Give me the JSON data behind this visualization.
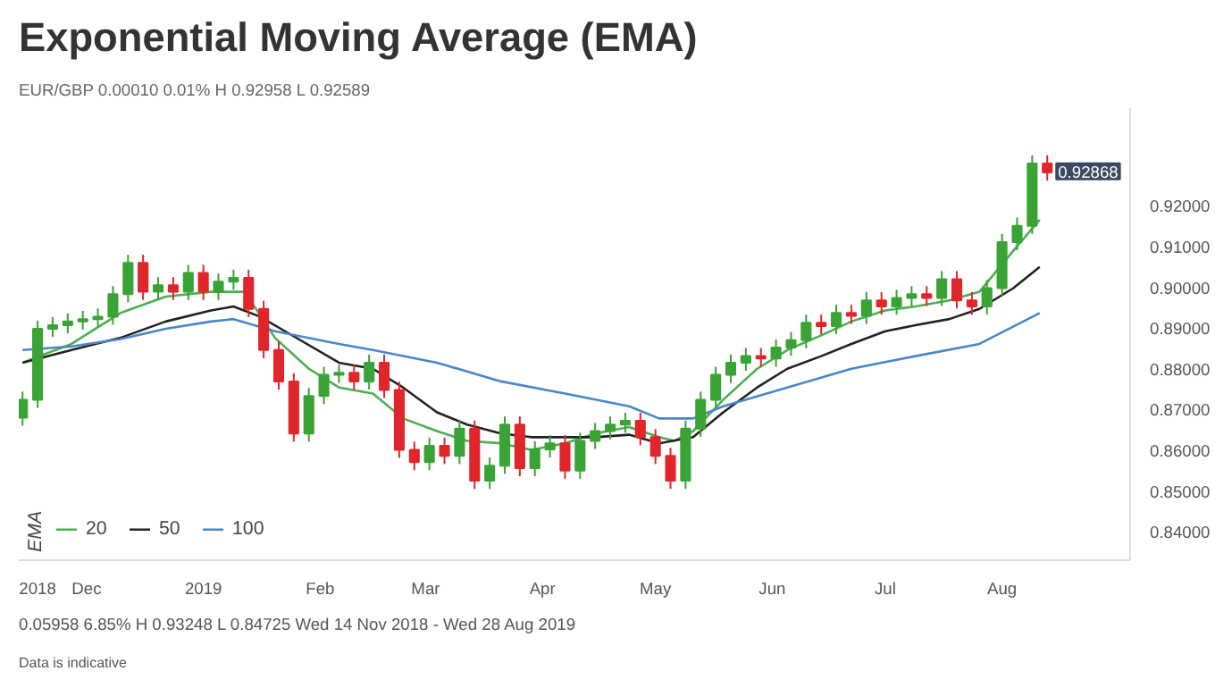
{
  "chart_data": {
    "type": "candlestick",
    "title": "Exponential Moving Average (EMA)",
    "legend_title": "EMA",
    "legend": "bottom left",
    "annotations": [
      "EUR/GBP  0.00010  0.01%  H 0.92958  L 0.92589",
      {
        "text": "0.92868",
        "x": "2019-08-13",
        "y": 0.92868
      },
      "0.05958  6.85%  H 0.93248  L 0.84725  Wed 14 Nov 2018 - Wed 28 Aug 2019",
      "Data is indicative"
    ],
    "xlim": [
      "2018-11-13",
      "2019-09-04"
    ],
    "ylim": [
      0.833,
      0.944
    ],
    "xticks": [
      {
        "value": "2018-11-18",
        "label": "2018"
      },
      {
        "value": "2018-12-01",
        "label": "Dec"
      },
      {
        "value": "2019-01-01",
        "label": "2019"
      },
      {
        "value": "2019-02-01",
        "label": "Feb"
      },
      {
        "value": "2019-03-01",
        "label": "Mar"
      },
      {
        "value": "2019-04-01",
        "label": "Apr"
      },
      {
        "value": "2019-05-01",
        "label": "May"
      },
      {
        "value": "2019-06-01",
        "label": "Jun"
      },
      {
        "value": "2019-07-01",
        "label": "Jul"
      },
      {
        "value": "2019-08-01",
        "label": "Aug"
      }
    ],
    "yticks": [
      {
        "value": 0.84,
        "label": "0.84000"
      },
      {
        "value": 0.85,
        "label": "0.85000"
      },
      {
        "value": 0.86,
        "label": "0.86000"
      },
      {
        "value": 0.87,
        "label": "0.87000"
      },
      {
        "value": 0.88,
        "label": "0.88000"
      },
      {
        "value": 0.89,
        "label": "0.89000"
      },
      {
        "value": 0.9,
        "label": "0.90000"
      },
      {
        "value": 0.91,
        "label": "0.91000"
      },
      {
        "value": 0.92,
        "label": "0.92000"
      }
    ],
    "x": [
      "2018-11-14",
      "2018-11-18",
      "2018-11-22",
      "2018-11-26",
      "2018-11-30",
      "2018-12-04",
      "2018-12-08",
      "2018-12-12",
      "2018-12-16",
      "2018-12-20",
      "2018-12-24",
      "2018-12-28",
      "2019-01-01",
      "2019-01-05",
      "2019-01-09",
      "2019-01-13",
      "2019-01-17",
      "2019-01-21",
      "2019-01-25",
      "2019-01-29",
      "2019-02-02",
      "2019-02-06",
      "2019-02-10",
      "2019-02-14",
      "2019-02-18",
      "2019-02-22",
      "2019-02-26",
      "2019-03-02",
      "2019-03-06",
      "2019-03-10",
      "2019-03-14",
      "2019-03-18",
      "2019-03-22",
      "2019-03-26",
      "2019-03-30",
      "2019-04-03",
      "2019-04-07",
      "2019-04-11",
      "2019-04-15",
      "2019-04-19",
      "2019-04-23",
      "2019-04-27",
      "2019-05-01",
      "2019-05-05",
      "2019-05-09",
      "2019-05-13",
      "2019-05-17",
      "2019-05-21",
      "2019-05-25",
      "2019-05-29",
      "2019-06-02",
      "2019-06-06",
      "2019-06-10",
      "2019-06-14",
      "2019-06-18",
      "2019-06-22",
      "2019-06-26",
      "2019-06-30",
      "2019-07-04",
      "2019-07-08",
      "2019-07-12",
      "2019-07-16",
      "2019-07-20",
      "2019-07-24",
      "2019-07-28",
      "2019-08-01",
      "2019-08-05",
      "2019-08-09",
      "2019-08-13"
    ],
    "ohlc": [
      [
        0.868,
        0.8744,
        0.866,
        0.8724
      ],
      [
        0.8724,
        0.8918,
        0.8704,
        0.8898
      ],
      [
        0.8898,
        0.8927,
        0.8878,
        0.8907
      ],
      [
        0.8907,
        0.8936,
        0.8887,
        0.8916
      ],
      [
        0.8916,
        0.8942,
        0.8896,
        0.8922
      ],
      [
        0.8922,
        0.8948,
        0.8902,
        0.8928
      ],
      [
        0.8928,
        0.9003,
        0.8908,
        0.8983
      ],
      [
        0.8983,
        0.908,
        0.8963,
        0.906
      ],
      [
        0.906,
        0.908,
        0.8969,
        0.8989
      ],
      [
        0.8989,
        0.9025,
        0.8969,
        0.9005
      ],
      [
        0.9005,
        0.9025,
        0.8969,
        0.8989
      ],
      [
        0.8989,
        0.9055,
        0.8969,
        0.9035
      ],
      [
        0.9035,
        0.9055,
        0.8969,
        0.8989
      ],
      [
        0.8989,
        0.9034,
        0.8969,
        0.9014
      ],
      [
        0.9014,
        0.9043,
        0.8994,
        0.9023
      ],
      [
        0.9023,
        0.9043,
        0.8927,
        0.8947
      ],
      [
        0.8947,
        0.8967,
        0.8826,
        0.8846
      ],
      [
        0.8846,
        0.8866,
        0.8749,
        0.8769
      ],
      [
        0.8769,
        0.8789,
        0.8621,
        0.8641
      ],
      [
        0.8641,
        0.8753,
        0.8621,
        0.8733
      ],
      [
        0.8733,
        0.8805,
        0.8713,
        0.8785
      ],
      [
        0.8785,
        0.881,
        0.8765,
        0.879
      ],
      [
        0.879,
        0.881,
        0.8749,
        0.8769
      ],
      [
        0.8769,
        0.8835,
        0.8749,
        0.8815
      ],
      [
        0.8815,
        0.8835,
        0.8728,
        0.8748
      ],
      [
        0.8748,
        0.8768,
        0.8581,
        0.8601
      ],
      [
        0.8601,
        0.8621,
        0.8551,
        0.8571
      ],
      [
        0.8571,
        0.8631,
        0.8551,
        0.8611
      ],
      [
        0.8611,
        0.8631,
        0.8566,
        0.8586
      ],
      [
        0.8586,
        0.8673,
        0.8566,
        0.8653
      ],
      [
        0.8653,
        0.8673,
        0.8505,
        0.8525
      ],
      [
        0.8525,
        0.8582,
        0.8505,
        0.8562
      ],
      [
        0.8562,
        0.8683,
        0.8542,
        0.8663
      ],
      [
        0.8663,
        0.8683,
        0.8536,
        0.8556
      ],
      [
        0.8556,
        0.8622,
        0.8536,
        0.8602
      ],
      [
        0.8602,
        0.8637,
        0.8582,
        0.8617
      ],
      [
        0.8617,
        0.8637,
        0.853,
        0.855
      ],
      [
        0.855,
        0.8643,
        0.853,
        0.8623
      ],
      [
        0.8623,
        0.8667,
        0.8603,
        0.8647
      ],
      [
        0.8647,
        0.8683,
        0.8627,
        0.8663
      ],
      [
        0.8663,
        0.8692,
        0.8643,
        0.8672
      ],
      [
        0.8672,
        0.8692,
        0.8612,
        0.8632
      ],
      [
        0.8632,
        0.8652,
        0.8566,
        0.8586
      ],
      [
        0.8586,
        0.8606,
        0.8505,
        0.8525
      ],
      [
        0.8525,
        0.8673,
        0.8505,
        0.8653
      ],
      [
        0.8653,
        0.8744,
        0.8633,
        0.8724
      ],
      [
        0.8724,
        0.8805,
        0.8704,
        0.8785
      ],
      [
        0.8785,
        0.8835,
        0.8765,
        0.8815
      ],
      [
        0.8815,
        0.8851,
        0.8795,
        0.8831
      ],
      [
        0.8831,
        0.8851,
        0.8805,
        0.8825
      ],
      [
        0.8825,
        0.8872,
        0.8805,
        0.8852
      ],
      [
        0.8852,
        0.889,
        0.8832,
        0.887
      ],
      [
        0.887,
        0.8933,
        0.885,
        0.8913
      ],
      [
        0.8913,
        0.8933,
        0.8885,
        0.8905
      ],
      [
        0.8905,
        0.8957,
        0.8885,
        0.8937
      ],
      [
        0.8937,
        0.8957,
        0.891,
        0.893
      ],
      [
        0.893,
        0.8988,
        0.891,
        0.8968
      ],
      [
        0.8968,
        0.8988,
        0.8933,
        0.8953
      ],
      [
        0.8953,
        0.8994,
        0.8933,
        0.8974
      ],
      [
        0.8974,
        0.9003,
        0.8954,
        0.8983
      ],
      [
        0.8983,
        0.9003,
        0.8954,
        0.8974
      ],
      [
        0.8974,
        0.904,
        0.8954,
        0.902
      ],
      [
        0.902,
        0.904,
        0.8948,
        0.8968
      ],
      [
        0.8968,
        0.8988,
        0.8933,
        0.8953
      ],
      [
        0.8953,
        0.9018,
        0.8933,
        0.8998
      ],
      [
        0.8998,
        0.9131,
        0.8978,
        0.9111
      ],
      [
        0.9111,
        0.9171,
        0.9091,
        0.9151
      ],
      [
        0.9151,
        0.9324,
        0.9131,
        0.9304
      ],
      [
        0.9304,
        0.9324,
        0.9262,
        0.9282
      ]
    ],
    "series": [
      {
        "type": "line",
        "name": "20",
        "color": "#4caf50",
        "x": [
          "2018-11-14",
          "2018-11-27",
          "2018-12-10",
          "2018-12-22",
          "2019-01-03",
          "2019-01-12",
          "2019-01-20",
          "2019-01-29",
          "2019-02-06",
          "2019-02-15",
          "2019-02-23",
          "2019-03-04",
          "2019-03-12",
          "2019-03-21",
          "2019-03-29",
          "2019-04-07",
          "2019-04-15",
          "2019-04-24",
          "2019-05-02",
          "2019-05-06",
          "2019-05-11",
          "2019-05-19",
          "2019-05-28",
          "2019-06-05",
          "2019-06-14",
          "2019-06-22",
          "2019-07-01",
          "2019-07-09",
          "2019-07-18",
          "2019-07-26",
          "2019-08-04",
          "2019-08-11"
        ],
        "values": [
          0.8815,
          0.8861,
          0.8937,
          0.8977,
          0.8989,
          0.8989,
          0.8876,
          0.88,
          0.8754,
          0.8739,
          0.8678,
          0.8647,
          0.8623,
          0.8617,
          0.8601,
          0.8617,
          0.8641,
          0.8657,
          0.8632,
          0.8623,
          0.8647,
          0.8724,
          0.88,
          0.8846,
          0.8882,
          0.8916,
          0.8943,
          0.8953,
          0.8968,
          0.8989,
          0.909,
          0.9166
        ]
      },
      {
        "type": "line",
        "name": "50",
        "color": "#222222",
        "x": [
          "2018-11-14",
          "2018-11-27",
          "2018-12-10",
          "2018-12-22",
          "2019-01-03",
          "2019-01-09",
          "2019-01-16",
          "2019-01-24",
          "2019-02-06",
          "2019-02-15",
          "2019-02-23",
          "2019-03-04",
          "2019-03-12",
          "2019-03-21",
          "2019-03-29",
          "2019-04-07",
          "2019-04-15",
          "2019-04-24",
          "2019-05-02",
          "2019-05-11",
          "2019-05-19",
          "2019-05-28",
          "2019-06-05",
          "2019-06-14",
          "2019-06-22",
          "2019-07-01",
          "2019-07-09",
          "2019-07-18",
          "2019-07-26",
          "2019-08-04",
          "2019-08-11"
        ],
        "values": [
          0.8815,
          0.8846,
          0.8876,
          0.8916,
          0.8943,
          0.8953,
          0.8928,
          0.8885,
          0.8815,
          0.88,
          0.8754,
          0.8693,
          0.8663,
          0.8641,
          0.8632,
          0.8632,
          0.8632,
          0.8638,
          0.8617,
          0.8632,
          0.8693,
          0.8754,
          0.88,
          0.8831,
          0.8861,
          0.8892,
          0.8907,
          0.8922,
          0.8947,
          0.8998,
          0.905
        ]
      },
      {
        "type": "line",
        "name": "100",
        "color": "#4a86c8",
        "x": [
          "2018-11-14",
          "2018-11-27",
          "2018-12-10",
          "2018-12-22",
          "2019-01-03",
          "2019-01-09",
          "2019-01-20",
          "2019-02-06",
          "2019-02-15",
          "2019-03-04",
          "2019-03-21",
          "2019-04-07",
          "2019-04-24",
          "2019-05-02",
          "2019-05-11",
          "2019-05-19",
          "2019-06-05",
          "2019-06-22",
          "2019-07-09",
          "2019-07-26",
          "2019-08-11"
        ],
        "values": [
          0.8846,
          0.8855,
          0.8873,
          0.8898,
          0.8916,
          0.8922,
          0.8892,
          0.8861,
          0.8846,
          0.8815,
          0.8769,
          0.8739,
          0.8708,
          0.8678,
          0.8678,
          0.8708,
          0.8754,
          0.88,
          0.8831,
          0.8861,
          0.8937
        ]
      }
    ]
  }
}
